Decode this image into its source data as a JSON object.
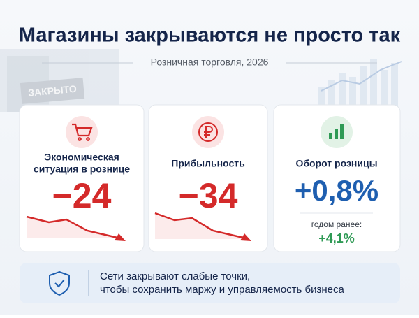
{
  "header": {
    "title": "Магазины закрываются не просто так",
    "subtitle": "Розничная торговля, 2026",
    "sign": "ЗАКРЫТО"
  },
  "cards": [
    {
      "label": [
        "Экономическая",
        "ситуация в рознице"
      ],
      "value": "−24"
    },
    {
      "label": [
        "Прибыльность"
      ],
      "value": "−34"
    },
    {
      "label": [
        "Оборот розницы"
      ],
      "value": "+0,8%",
      "note": "годом ранее:",
      "previous": "+4,1%"
    }
  ],
  "footer": {
    "lines": [
      "Сети закрывают слабые точки,",
      "чтобы сохранить маржу и управляемость бизнеса"
    ]
  }
}
